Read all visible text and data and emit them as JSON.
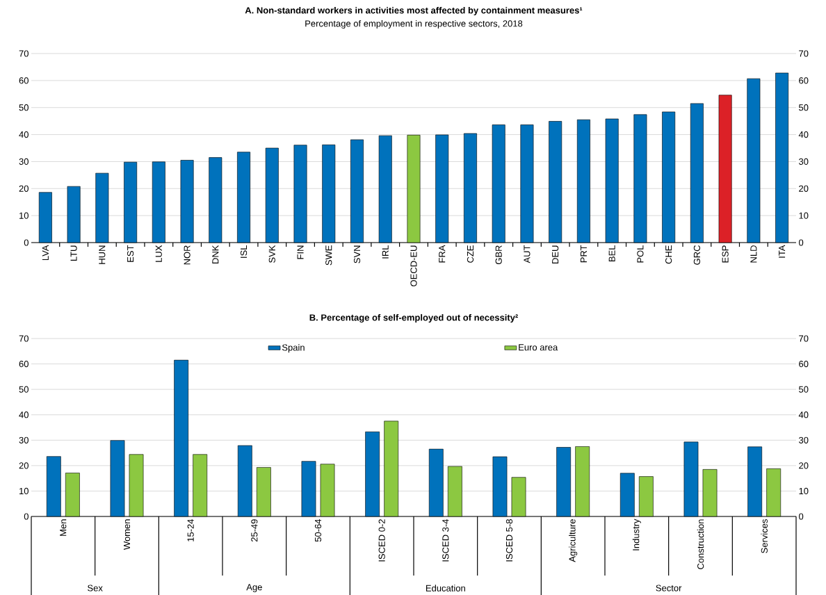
{
  "chart_data": [
    {
      "type": "bar",
      "title": "A. Non-standard workers in activities most affected by containment measures¹",
      "subtitle": "Percentage of employment in respective sectors, 2018",
      "categories": [
        "LVA",
        "LTU",
        "HUN",
        "EST",
        "LUX",
        "NOR",
        "DNK",
        "ISL",
        "SVK",
        "FIN",
        "SWE",
        "SVN",
        "IRL",
        "OECD-EU",
        "FRA",
        "CZE",
        "GBR",
        "AUT",
        "DEU",
        "PRT",
        "BEL",
        "POL",
        "CHE",
        "GRC",
        "ESP",
        "NLD",
        "ITA"
      ],
      "values": [
        18.6,
        20.8,
        25.7,
        29.8,
        29.9,
        30.5,
        31.5,
        33.5,
        35.0,
        36.1,
        36.2,
        38.1,
        39.6,
        39.8,
        39.9,
        40.4,
        43.6,
        43.6,
        44.9,
        45.5,
        45.8,
        47.4,
        48.4,
        51.5,
        54.6,
        60.7,
        62.8
      ],
      "colors": [
        "#0072bc",
        "#0072bc",
        "#0072bc",
        "#0072bc",
        "#0072bc",
        "#0072bc",
        "#0072bc",
        "#0072bc",
        "#0072bc",
        "#0072bc",
        "#0072bc",
        "#0072bc",
        "#0072bc",
        "#8cc841",
        "#0072bc",
        "#0072bc",
        "#0072bc",
        "#0072bc",
        "#0072bc",
        "#0072bc",
        "#0072bc",
        "#0072bc",
        "#0072bc",
        "#0072bc",
        "#dc2127",
        "#0072bc",
        "#0072bc"
      ],
      "ylim": [
        0,
        70
      ],
      "yticks": [
        0,
        10,
        20,
        30,
        40,
        50,
        60,
        70
      ],
      "y2lim": [
        0,
        70
      ],
      "y2ticks": [
        0,
        10,
        20,
        30,
        40,
        50,
        60,
        70
      ],
      "grid": "y"
    },
    {
      "type": "bar",
      "title": "B. Percentage of self-employed out of necessity²",
      "categories": [
        "Men",
        "Women",
        "15-24",
        "25-49",
        "50-64",
        "ISCED 0-2",
        "ISCED 3-4",
        "ISCED 5-8",
        "Agriculture",
        "Industry",
        "Construction",
        "Services"
      ],
      "series": [
        {
          "name": "Spain",
          "color": "#0072bc",
          "values": [
            23.6,
            29.9,
            61.5,
            27.9,
            21.7,
            33.3,
            26.5,
            23.5,
            27.2,
            17.0,
            29.3,
            27.4
          ]
        },
        {
          "name": "Euro area",
          "color": "#8cc841",
          "values": [
            17.1,
            24.4,
            24.4,
            19.3,
            20.6,
            37.5,
            19.7,
            15.4,
            27.5,
            15.7,
            18.5,
            18.8
          ]
        }
      ],
      "annotations": [
        "Sex",
        "Age",
        "Education",
        "Sector"
      ],
      "ylim": [
        0,
        70
      ],
      "yticks": [
        0,
        10,
        20,
        30,
        40,
        50,
        60,
        70
      ],
      "y2lim": [
        0,
        70
      ],
      "y2ticks": [
        0,
        10,
        20,
        30,
        40,
        50,
        60,
        70
      ],
      "grid": "y",
      "legend": "top"
    }
  ]
}
